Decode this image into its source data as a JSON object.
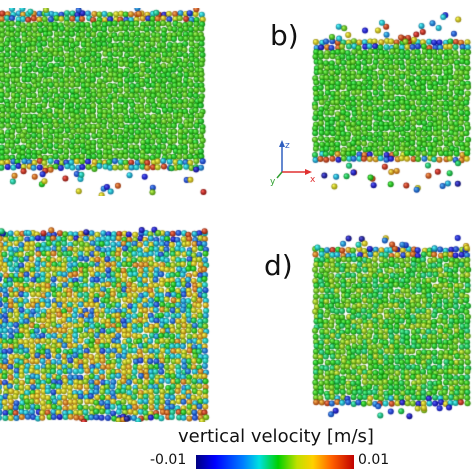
{
  "panels": [
    {
      "id": "a",
      "label": ""
    },
    {
      "id": "b",
      "label": "b)"
    },
    {
      "id": "c",
      "label": ""
    },
    {
      "id": "d",
      "label": "d)"
    }
  ],
  "axes": {
    "z": "z",
    "y": "y",
    "x": "x",
    "z_color": "#3060c0",
    "y_color": "#30a030",
    "x_color": "#e03030"
  },
  "colorbar": {
    "title": "vertical velocity [m/s]",
    "min_label": "-0.01",
    "max_label": "0.01",
    "colors": [
      "#000080",
      "#0000ff",
      "#0080ff",
      "#00e0e0",
      "#00d000",
      "#c0e000",
      "#ffd000",
      "#ff6000",
      "#c00000"
    ]
  }
}
